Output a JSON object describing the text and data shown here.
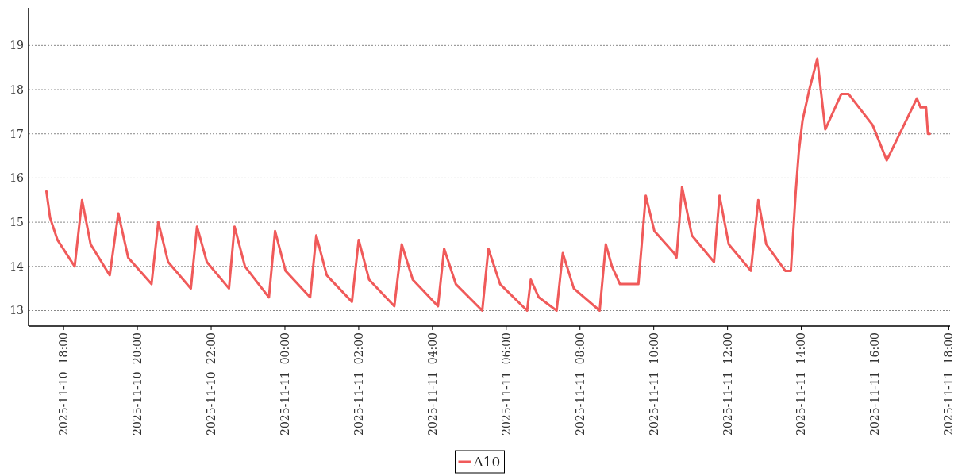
{
  "chart_data": {
    "type": "line",
    "x": [
      "2025-11-10T17:32",
      "2025-11-10T17:38",
      "2025-11-10T17:50",
      "2025-11-10T18:18",
      "2025-11-10T18:30",
      "2025-11-10T18:44",
      "2025-11-10T19:15",
      "2025-11-10T19:29",
      "2025-11-10T19:45",
      "2025-11-10T20:23",
      "2025-11-10T20:34",
      "2025-11-10T20:50",
      "2025-11-10T21:27",
      "2025-11-10T21:37",
      "2025-11-10T21:53",
      "2025-11-10T22:29",
      "2025-11-10T22:38",
      "2025-11-10T22:55",
      "2025-11-10T23:34",
      "2025-11-10T23:44",
      "2025-11-11T00:01",
      "2025-11-11T00:41",
      "2025-11-11T00:51",
      "2025-11-11T01:08",
      "2025-11-11T01:49",
      "2025-11-11T02:00",
      "2025-11-11T02:17",
      "2025-11-11T02:58",
      "2025-11-11T03:10",
      "2025-11-11T03:28",
      "2025-11-11T04:09",
      "2025-11-11T04:19",
      "2025-11-11T04:38",
      "2025-11-11T05:21",
      "2025-11-11T05:31",
      "2025-11-11T05:50",
      "2025-11-11T06:34",
      "2025-11-11T06:40",
      "2025-11-11T06:53",
      "2025-11-11T07:22",
      "2025-11-11T07:32",
      "2025-11-11T07:50",
      "2025-11-11T08:32",
      "2025-11-11T08:42",
      "2025-11-11T08:52",
      "2025-11-11T09:05",
      "2025-11-11T09:35",
      "2025-11-11T09:47",
      "2025-11-11T10:01",
      "2025-11-11T10:33",
      "2025-11-11T10:37",
      "2025-11-11T10:46",
      "2025-11-11T11:02",
      "2025-11-11T11:38",
      "2025-11-11T11:47",
      "2025-11-11T12:02",
      "2025-11-11T12:38",
      "2025-11-11T12:50",
      "2025-11-11T13:03",
      "2025-11-11T13:34",
      "2025-11-11T13:43",
      "2025-11-11T13:51",
      "2025-11-11T13:56",
      "2025-11-11T14:02",
      "2025-11-11T14:13",
      "2025-11-11T14:26",
      "2025-11-11T14:39",
      "2025-11-11T15:05",
      "2025-11-11T15:17",
      "2025-11-11T15:56",
      "2025-11-11T16:19",
      "2025-11-11T17:08",
      "2025-11-11T17:14",
      "2025-11-11T17:23",
      "2025-11-11T17:26",
      "2025-11-11T17:29"
    ],
    "series": [
      {
        "name": "A10",
        "color": "#f05a5a",
        "values": [
          15.7,
          15.1,
          14.6,
          14.0,
          15.5,
          14.5,
          13.8,
          15.2,
          14.2,
          13.6,
          15.0,
          14.1,
          13.5,
          14.9,
          14.1,
          13.5,
          14.9,
          14.0,
          13.3,
          14.8,
          13.9,
          13.3,
          14.7,
          13.8,
          13.2,
          14.6,
          13.7,
          13.1,
          14.5,
          13.7,
          13.1,
          14.4,
          13.6,
          13.0,
          14.4,
          13.6,
          13.0,
          13.7,
          13.3,
          13.0,
          14.3,
          13.5,
          13.0,
          14.5,
          14.0,
          13.6,
          13.6,
          15.6,
          14.8,
          14.3,
          14.2,
          15.8,
          14.7,
          14.1,
          15.6,
          14.5,
          13.9,
          15.5,
          14.5,
          13.9,
          13.9,
          15.7,
          16.6,
          17.3,
          18.0,
          18.7,
          17.1,
          17.9,
          17.9,
          17.2,
          16.4,
          17.8,
          17.6,
          17.6,
          17.0,
          17.0
        ]
      }
    ],
    "xlim": [
      "2025-11-10T17:03",
      "2025-11-11T18:02"
    ],
    "xticks": [
      {
        "value": "2025-11-10T18:00",
        "label": "2025-11-10  18:00"
      },
      {
        "value": "2025-11-10T20:00",
        "label": "2025-11-10  20:00"
      },
      {
        "value": "2025-11-10T22:00",
        "label": "2025-11-10  22:00"
      },
      {
        "value": "2025-11-11T00:00",
        "label": "2025-11-11  00:00"
      },
      {
        "value": "2025-11-11T02:00",
        "label": "2025-11-11  02:00"
      },
      {
        "value": "2025-11-11T04:00",
        "label": "2025-11-11  04:00"
      },
      {
        "value": "2025-11-11T06:00",
        "label": "2025-11-11  06:00"
      },
      {
        "value": "2025-11-11T08:00",
        "label": "2025-11-11  08:00"
      },
      {
        "value": "2025-11-11T10:00",
        "label": "2025-11-11  10:00"
      },
      {
        "value": "2025-11-11T12:00",
        "label": "2025-11-11  12:00"
      },
      {
        "value": "2025-11-11T14:00",
        "label": "2025-11-11  14:00"
      },
      {
        "value": "2025-11-11T16:00",
        "label": "2025-11-11  16:00"
      },
      {
        "value": "2025-11-11T18:00",
        "label": "2025-11-11  18:00"
      }
    ],
    "ylim": [
      12.65,
      19.85
    ],
    "yticks": [
      13,
      14,
      15,
      16,
      17,
      18,
      19
    ],
    "grid": "y",
    "legend": "bottom",
    "marker": "none",
    "line_style": "solid"
  }
}
